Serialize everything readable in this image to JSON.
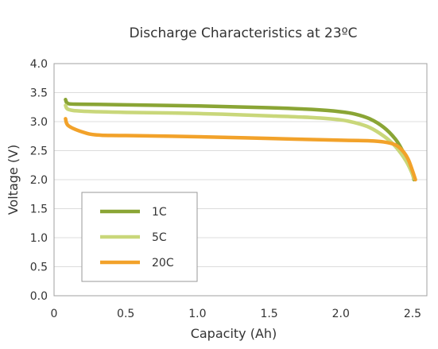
{
  "chart_data": {
    "type": "line",
    "title": "Discharge Characteristics at 23ºC",
    "xlabel": "Capacity (Ah)",
    "ylabel": "Voltage (V)",
    "xlim": [
      0,
      2.6
    ],
    "ylim": [
      0,
      4.0
    ],
    "x_ticks": [
      "0",
      "0.5",
      "1.0",
      "1.5",
      "2.0",
      "2.5"
    ],
    "y_ticks": [
      "0.0",
      "0.5",
      "1.0",
      "1.5",
      "2.0",
      "2.5",
      "3.0",
      "3.5",
      "4.0"
    ],
    "grid": "horizontal",
    "legend_position": "bottom-left",
    "series": [
      {
        "name": "1C",
        "color": "#8aa535",
        "points": [
          [
            0.08,
            3.38
          ],
          [
            0.1,
            3.31
          ],
          [
            0.2,
            3.3
          ],
          [
            0.5,
            3.29
          ],
          [
            1.0,
            3.27
          ],
          [
            1.5,
            3.24
          ],
          [
            1.8,
            3.21
          ],
          [
            2.0,
            3.17
          ],
          [
            2.1,
            3.13
          ],
          [
            2.2,
            3.05
          ],
          [
            2.3,
            2.9
          ],
          [
            2.38,
            2.7
          ],
          [
            2.43,
            2.5
          ],
          [
            2.47,
            2.3
          ],
          [
            2.5,
            2.1
          ],
          [
            2.51,
            2.0
          ]
        ]
      },
      {
        "name": "5C",
        "color": "#c9d77a",
        "points": [
          [
            0.08,
            3.28
          ],
          [
            0.1,
            3.21
          ],
          [
            0.2,
            3.18
          ],
          [
            0.5,
            3.16
          ],
          [
            1.0,
            3.14
          ],
          [
            1.5,
            3.1
          ],
          [
            1.8,
            3.07
          ],
          [
            2.0,
            3.03
          ],
          [
            2.1,
            2.98
          ],
          [
            2.2,
            2.9
          ],
          [
            2.3,
            2.75
          ],
          [
            2.37,
            2.6
          ],
          [
            2.42,
            2.45
          ],
          [
            2.46,
            2.3
          ],
          [
            2.49,
            2.15
          ],
          [
            2.51,
            2.02
          ]
        ]
      },
      {
        "name": "20C",
        "color": "#f2a22a",
        "points": [
          [
            0.08,
            3.05
          ],
          [
            0.1,
            2.93
          ],
          [
            0.2,
            2.82
          ],
          [
            0.3,
            2.77
          ],
          [
            0.5,
            2.76
          ],
          [
            1.0,
            2.74
          ],
          [
            1.5,
            2.71
          ],
          [
            2.0,
            2.68
          ],
          [
            2.2,
            2.67
          ],
          [
            2.3,
            2.65
          ],
          [
            2.38,
            2.6
          ],
          [
            2.43,
            2.5
          ],
          [
            2.47,
            2.35
          ],
          [
            2.5,
            2.15
          ],
          [
            2.52,
            2.0
          ]
        ]
      }
    ]
  },
  "colors": {
    "axis": "#a0a0a0",
    "grid": "#dcdcdc",
    "plot_bg": "#ffffff",
    "text": "#333333",
    "legend_border": "#999999"
  }
}
